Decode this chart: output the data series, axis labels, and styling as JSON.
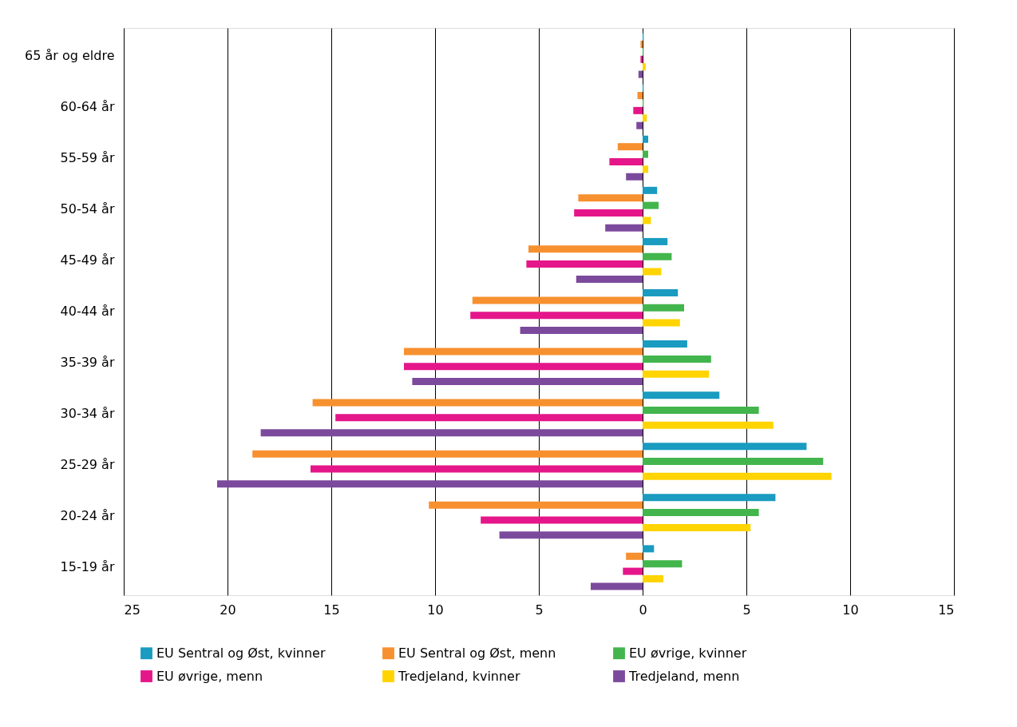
{
  "chart_data": {
    "type": "bar",
    "orientation": "horizontal",
    "categories": [
      "65 år og eldre",
      "60-64 år",
      "55-59 år",
      "50-54 år",
      "45-49 år",
      "40-44 år",
      "35-39 år",
      "30-34 år",
      "25-29 år",
      "20-24 år",
      "15-19 år"
    ],
    "series": [
      {
        "name": "EU Sentral og Øst, kvinner",
        "color": "#1a9bc0",
        "values": [
          0.05,
          0.05,
          0.27,
          0.7,
          1.2,
          1.7,
          2.15,
          3.7,
          7.9,
          6.4,
          0.55
        ]
      },
      {
        "name": "EU Sentral og Øst, menn",
        "color": "#f7902f",
        "values": [
          -0.1,
          -0.25,
          -1.2,
          -3.1,
          -5.5,
          -8.2,
          -11.5,
          -15.9,
          -18.8,
          -10.3,
          -0.8
        ]
      },
      {
        "name": "EU øvrige, kvinner",
        "color": "#43b54d",
        "values": [
          0.05,
          0.05,
          0.27,
          0.77,
          1.4,
          2.0,
          3.3,
          5.6,
          8.7,
          5.6,
          1.9
        ]
      },
      {
        "name": "EU øvrige, menn",
        "color": "#e5168a",
        "values": [
          -0.1,
          -0.45,
          -1.6,
          -3.3,
          -5.6,
          -8.3,
          -11.5,
          -14.8,
          -16.0,
          -7.8,
          -0.95
        ]
      },
      {
        "name": "Tredjeland, kvinner",
        "color": "#ffd400",
        "values": [
          0.15,
          0.2,
          0.27,
          0.4,
          0.9,
          1.8,
          3.2,
          6.3,
          9.1,
          5.2,
          1.0
        ]
      },
      {
        "name": "Tredjeland, menn",
        "color": "#7c4a9c",
        "values": [
          -0.2,
          -0.3,
          -0.8,
          -1.8,
          -3.2,
          -5.9,
          -11.1,
          -18.4,
          -20.5,
          -6.9,
          -2.5
        ]
      }
    ],
    "xlim": [
      -25,
      15
    ],
    "xticks": [
      {
        "value": -25,
        "label": "25"
      },
      {
        "value": -20,
        "label": "20"
      },
      {
        "value": -15,
        "label": "15"
      },
      {
        "value": -10,
        "label": "10"
      },
      {
        "value": -5,
        "label": "5"
      },
      0,
      5,
      10,
      15
    ],
    "grid": "x",
    "legend": "bottom"
  }
}
